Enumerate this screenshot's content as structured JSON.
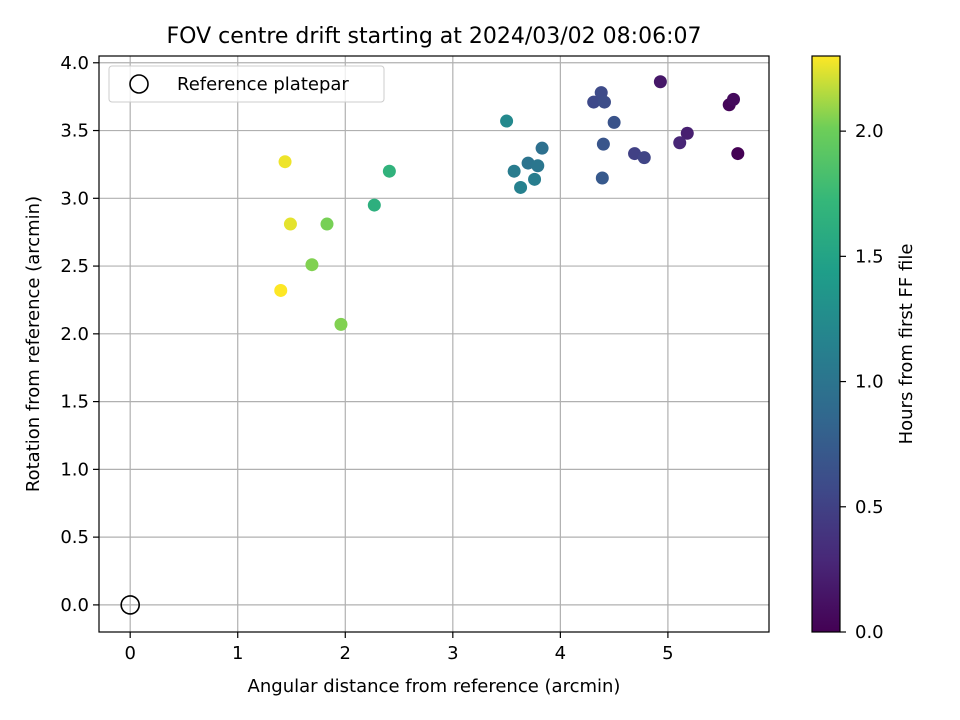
{
  "chart_data": {
    "type": "scatter",
    "title": "FOV centre drift starting at 2024/03/02 08:06:07",
    "xlabel": "Angular distance from reference (arcmin)",
    "ylabel": "Rotation from reference (arcmin)",
    "xlim": [
      -0.29,
      5.94
    ],
    "ylim": [
      -0.2,
      4.05
    ],
    "xticks": [
      0,
      1,
      2,
      3,
      4,
      5
    ],
    "yticks": [
      0.0,
      0.5,
      1.0,
      1.5,
      2.0,
      2.5,
      3.0,
      3.5,
      4.0
    ],
    "xtick_labels": [
      "0",
      "1",
      "2",
      "3",
      "4",
      "5"
    ],
    "ytick_labels": [
      "0.0",
      "0.5",
      "1.0",
      "1.5",
      "2.0",
      "2.5",
      "3.0",
      "3.5",
      "4.0"
    ],
    "grid": true,
    "legend": {
      "placement": "top-left",
      "entries": [
        "Reference platepar"
      ]
    },
    "reference_point": {
      "x": 0,
      "y": 0
    },
    "colorbar": {
      "label": "Hours from first FF file",
      "colormap": "viridis",
      "range": [
        0,
        2.3
      ],
      "ticks": [
        0.0,
        0.5,
        1.0,
        1.5,
        2.0
      ],
      "tick_labels": [
        "0.0",
        "0.5",
        "1.0",
        "1.5",
        "2.0"
      ]
    },
    "points": [
      {
        "x": 5.65,
        "y": 3.33,
        "c": 0.0
      },
      {
        "x": 5.57,
        "y": 3.69,
        "c": 0.04
      },
      {
        "x": 5.61,
        "y": 3.73,
        "c": 0.07
      },
      {
        "x": 4.93,
        "y": 3.86,
        "c": 0.16
      },
      {
        "x": 5.18,
        "y": 3.48,
        "c": 0.22
      },
      {
        "x": 5.11,
        "y": 3.41,
        "c": 0.27
      },
      {
        "x": 4.69,
        "y": 3.33,
        "c": 0.5
      },
      {
        "x": 4.78,
        "y": 3.3,
        "c": 0.53
      },
      {
        "x": 4.31,
        "y": 3.71,
        "c": 0.57
      },
      {
        "x": 4.38,
        "y": 3.78,
        "c": 0.58
      },
      {
        "x": 4.41,
        "y": 3.71,
        "c": 0.6
      },
      {
        "x": 4.5,
        "y": 3.56,
        "c": 0.66
      },
      {
        "x": 4.4,
        "y": 3.4,
        "c": 0.68
      },
      {
        "x": 4.39,
        "y": 3.15,
        "c": 0.72
      },
      {
        "x": 3.83,
        "y": 3.37,
        "c": 0.95
      },
      {
        "x": 3.7,
        "y": 3.26,
        "c": 0.99
      },
      {
        "x": 3.79,
        "y": 3.24,
        "c": 1.02
      },
      {
        "x": 3.57,
        "y": 3.2,
        "c": 1.08
      },
      {
        "x": 3.76,
        "y": 3.14,
        "c": 1.1
      },
      {
        "x": 3.63,
        "y": 3.08,
        "c": 1.14
      },
      {
        "x": 3.5,
        "y": 3.57,
        "c": 1.22
      },
      {
        "x": 2.27,
        "y": 2.95,
        "c": 1.63
      },
      {
        "x": 2.41,
        "y": 3.2,
        "c": 1.67
      },
      {
        "x": 1.83,
        "y": 2.81,
        "c": 2.03
      },
      {
        "x": 1.69,
        "y": 2.51,
        "c": 2.05
      },
      {
        "x": 1.96,
        "y": 2.07,
        "c": 2.05
      },
      {
        "x": 1.49,
        "y": 2.81,
        "c": 2.25
      },
      {
        "x": 1.44,
        "y": 3.27,
        "c": 2.27
      },
      {
        "x": 1.4,
        "y": 2.32,
        "c": 2.3
      }
    ]
  }
}
